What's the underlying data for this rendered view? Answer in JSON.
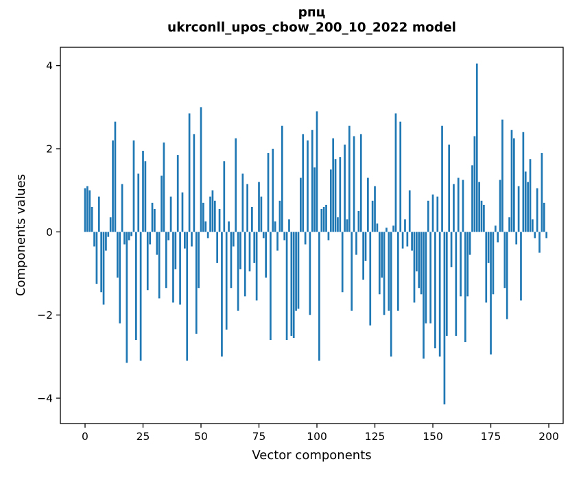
{
  "chart_data": {
    "type": "bar",
    "title_line1": "рпц",
    "title_line2": "ukrconll_upos_cbow_200_10_2022 model",
    "xlabel": "Vector components",
    "ylabel": "Components values",
    "bar_color": "#1f77b4",
    "spine_color": "#000000",
    "background_color": "#ffffff",
    "grid": false,
    "legend": false,
    "n_bars": 200,
    "bar_rel_width": 0.8,
    "xlim": [
      -10.65,
      206.2
    ],
    "ylim": [
      -4.61,
      4.44
    ],
    "x_ticks": [
      0,
      25,
      50,
      75,
      100,
      125,
      150,
      175,
      200
    ],
    "x_tick_labels": [
      "0",
      "25",
      "50",
      "75",
      "100",
      "125",
      "150",
      "175",
      "200"
    ],
    "y_ticks": [
      -4,
      -2,
      0,
      2,
      4
    ],
    "y_tick_labels": [
      "−4",
      "−2",
      "0",
      "2",
      "4"
    ],
    "x": [
      0,
      1,
      2,
      3,
      4,
      5,
      6,
      7,
      8,
      9,
      10,
      11,
      12,
      13,
      14,
      15,
      16,
      17,
      18,
      19,
      20,
      21,
      22,
      23,
      24,
      25,
      26,
      27,
      28,
      29,
      30,
      31,
      32,
      33,
      34,
      35,
      36,
      37,
      38,
      39,
      40,
      41,
      42,
      43,
      44,
      45,
      46,
      47,
      48,
      49,
      50,
      51,
      52,
      53,
      54,
      55,
      56,
      57,
      58,
      59,
      60,
      61,
      62,
      63,
      64,
      65,
      66,
      67,
      68,
      69,
      70,
      71,
      72,
      73,
      74,
      75,
      76,
      77,
      78,
      79,
      80,
      81,
      82,
      83,
      84,
      85,
      86,
      87,
      88,
      89,
      90,
      91,
      92,
      93,
      94,
      95,
      96,
      97,
      98,
      99,
      100,
      101,
      102,
      103,
      104,
      105,
      106,
      107,
      108,
      109,
      110,
      111,
      112,
      113,
      114,
      115,
      116,
      117,
      118,
      119,
      120,
      121,
      122,
      123,
      124,
      125,
      126,
      127,
      128,
      129,
      130,
      131,
      132,
      133,
      134,
      135,
      136,
      137,
      138,
      139,
      140,
      141,
      142,
      143,
      144,
      145,
      146,
      147,
      148,
      149,
      150,
      151,
      152,
      153,
      154,
      155,
      156,
      157,
      158,
      159,
      160,
      161,
      162,
      163,
      164,
      165,
      166,
      167,
      168,
      169,
      170,
      171,
      172,
      173,
      174,
      175,
      176,
      177,
      178,
      179,
      180,
      181,
      182,
      183,
      184,
      185,
      186,
      187,
      188,
      189,
      190,
      191,
      192,
      193,
      194,
      195,
      196,
      197,
      198,
      199
    ],
    "values": [
      1.05,
      1.1,
      1.0,
      0.6,
      -0.35,
      -1.25,
      0.85,
      -1.45,
      -1.75,
      -0.45,
      -0.12,
      0.35,
      2.2,
      2.65,
      -1.1,
      -2.2,
      1.15,
      -0.3,
      -3.15,
      -0.2,
      -0.1,
      2.2,
      -2.6,
      1.4,
      -3.1,
      1.95,
      1.7,
      -1.4,
      -0.3,
      0.7,
      0.55,
      -0.55,
      -1.6,
      1.35,
      2.15,
      -1.35,
      -0.2,
      0.85,
      -1.7,
      -0.9,
      1.85,
      -1.75,
      0.95,
      -0.4,
      -3.1,
      2.85,
      -0.35,
      2.35,
      -2.45,
      -1.35,
      3.0,
      0.7,
      0.25,
      -0.15,
      0.85,
      1.0,
      0.75,
      -0.75,
      0.55,
      -3.0,
      1.7,
      -2.35,
      0.25,
      -1.35,
      -0.35,
      2.25,
      -1.9,
      -0.9,
      1.4,
      -1.55,
      1.15,
      -0.95,
      0.6,
      -0.75,
      -1.65,
      1.2,
      0.85,
      -0.15,
      -1.1,
      1.9,
      -2.6,
      2.0,
      0.25,
      -0.45,
      0.75,
      2.55,
      -0.2,
      -2.6,
      0.3,
      -2.5,
      -2.55,
      -1.9,
      -1.85,
      1.3,
      2.35,
      -0.3,
      2.2,
      -2.0,
      2.45,
      1.55,
      2.9,
      -3.1,
      0.55,
      0.6,
      0.65,
      -0.2,
      1.5,
      2.25,
      1.75,
      0.35,
      1.8,
      -1.45,
      2.1,
      0.3,
      2.55,
      -1.9,
      2.3,
      -0.55,
      0.5,
      2.35,
      -1.15,
      -0.7,
      1.3,
      -2.25,
      0.75,
      1.1,
      0.2,
      -1.5,
      -1.1,
      -2.0,
      0.1,
      -1.9,
      -3.0,
      0.15,
      2.85,
      -1.9,
      2.65,
      -0.4,
      0.3,
      -0.35,
      1.0,
      -0.45,
      -1.7,
      -0.95,
      -1.35,
      -1.5,
      -3.05,
      -2.2,
      0.75,
      -2.2,
      0.9,
      -2.8,
      0.85,
      -3.0,
      2.55,
      -4.15,
      -2.5,
      2.1,
      -0.85,
      1.15,
      -2.5,
      1.3,
      -1.55,
      1.25,
      -2.65,
      -1.55,
      -0.55,
      1.6,
      2.3,
      4.05,
      1.2,
      0.75,
      0.65,
      -1.7,
      -0.75,
      -2.95,
      -1.5,
      0.15,
      -0.25,
      1.25,
      2.7,
      -1.35,
      -2.1,
      0.35,
      2.45,
      2.25,
      -0.3,
      1.1,
      -1.65,
      2.4,
      1.45,
      1.2,
      1.75,
      0.3,
      -0.15,
      1.05,
      -0.5,
      1.9,
      0.7,
      -0.15
    ]
  }
}
